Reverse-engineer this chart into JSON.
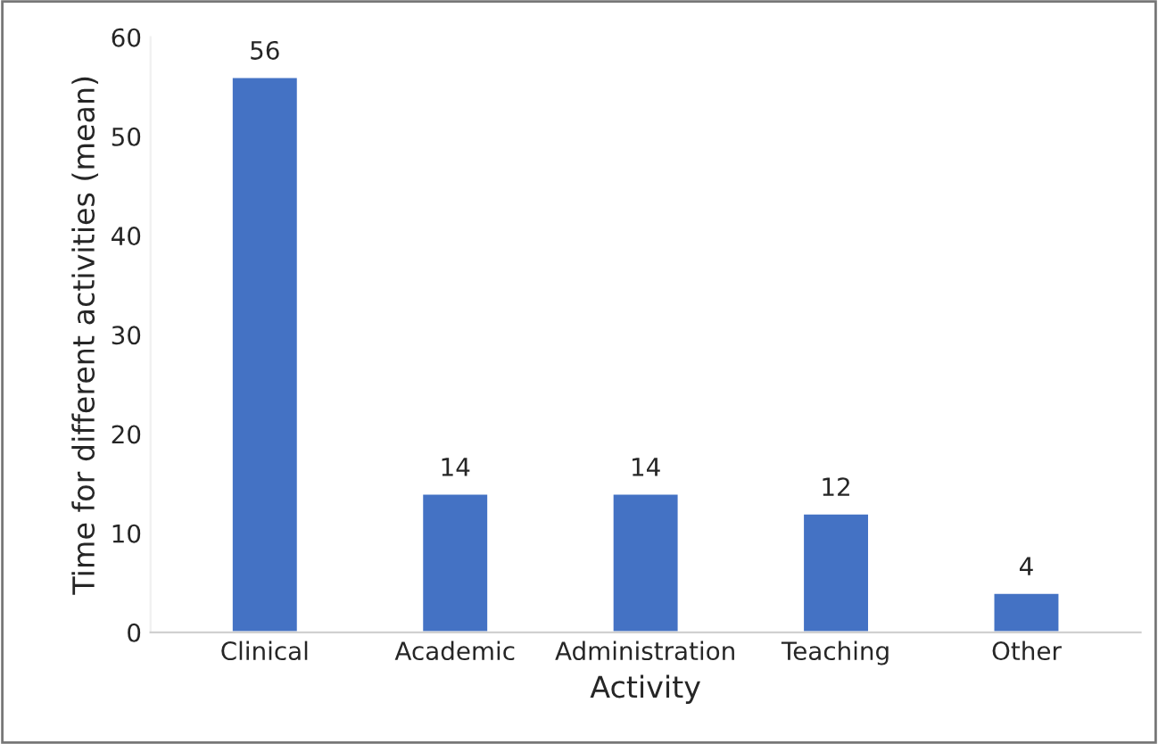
{
  "chart_data": {
    "type": "bar",
    "xlabel": "Activity",
    "ylabel": "Time for different activities (mean)",
    "categories": [
      "Clinical",
      "Academic",
      "Administration",
      "Teaching",
      "Other"
    ],
    "values": [
      56,
      14,
      14,
      12,
      4
    ],
    "color": "#4472c4",
    "ylim": [
      0,
      60
    ],
    "yticks": [
      0,
      10,
      20,
      30,
      40,
      50,
      60
    ],
    "grid": false,
    "data_labels": true
  }
}
